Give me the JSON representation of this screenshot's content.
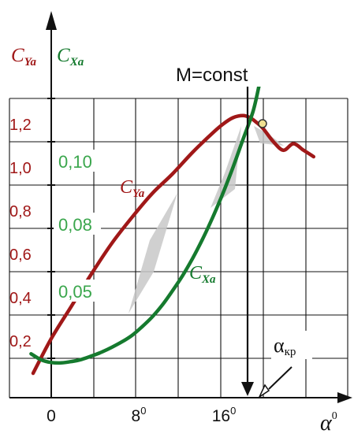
{
  "chart_data": {
    "type": "line",
    "title": "",
    "xlabel": "α",
    "xlabel_sup": "0",
    "x_ticks": [
      "0",
      "8",
      "16"
    ],
    "x_tick_sup": "0",
    "y_left_label": {
      "base": "C",
      "sub": "Ya"
    },
    "y_right_label": {
      "base": "C",
      "sub": "Xa"
    },
    "cy_ticks": [
      "0,2",
      "0,4",
      "0,6",
      "0,8",
      "1,0",
      "1,2"
    ],
    "cx_ticks": [
      "0,05",
      "0,08",
      "0,10"
    ],
    "annotation": "M=const",
    "alpha_critical": {
      "base": "α",
      "sub": "кр",
      "value": 20
    },
    "grid": true,
    "colors": {
      "cy": "#a01818",
      "cx": "#157a2e",
      "cx_ticks": "#3aa64c",
      "shade": "#c8c8c8",
      "marker": "#f0e090"
    },
    "xlim": [
      -2.3,
      27.2
    ],
    "series": [
      {
        "name": "C_Ya",
        "label": {
          "base": "C",
          "sub": "Ya"
        },
        "x": [
          -1.8,
          0,
          2,
          4,
          6,
          8,
          10,
          12,
          14,
          16,
          17,
          18,
          19,
          19.7,
          20.3,
          21,
          22,
          23,
          24,
          25,
          26
        ],
        "y": [
          0.04,
          0.2,
          0.35,
          0.5,
          0.64,
          0.76,
          0.87,
          0.96,
          1.06,
          1.15,
          1.19,
          1.22,
          1.23,
          1.22,
          1.2,
          1.17,
          1.11,
          1.07,
          1.1,
          1.07,
          1.04
        ]
      },
      {
        "name": "C_Xa",
        "label": {
          "base": "C",
          "sub": "Xa"
        },
        "x": [
          -2,
          -1,
          0,
          1,
          2,
          3,
          4,
          5,
          6,
          7,
          8,
          9,
          10,
          11,
          12,
          13,
          14,
          15,
          16,
          17,
          18,
          19,
          20,
          20.6
        ],
        "y": [
          0.13,
          0.102,
          0.09,
          0.088,
          0.094,
          0.104,
          0.12,
          0.138,
          0.16,
          0.185,
          0.215,
          0.255,
          0.3,
          0.355,
          0.42,
          0.49,
          0.57,
          0.66,
          0.76,
          0.87,
          0.99,
          1.12,
          1.25,
          1.37
        ]
      }
    ]
  }
}
